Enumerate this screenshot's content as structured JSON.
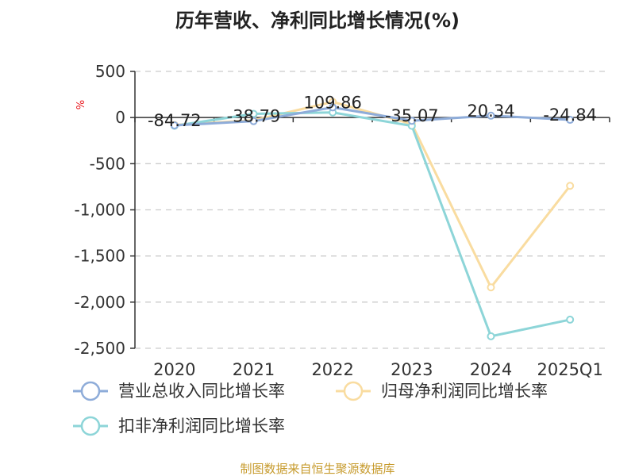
{
  "chart_data": {
    "type": "line",
    "title": "历年营收、净利同比增长情况(%)",
    "ylabel": "%",
    "categories": [
      "2020",
      "2021",
      "2022",
      "2023",
      "2024",
      "2025Q1"
    ],
    "ylim": [
      -2500,
      500
    ],
    "y_ticks": [
      500,
      0,
      -500,
      -1000,
      -1500,
      -2000,
      -2500
    ],
    "y_tick_labels": [
      "500",
      "0",
      "-500",
      "-1,000",
      "-1,500",
      "-2,000",
      "-2,500"
    ],
    "grid": true,
    "legend_position": "bottom",
    "series": [
      {
        "name": "营业总收入同比增长率",
        "color": "#8eacd9",
        "values": [
          -84.72,
          -38.79,
          109.86,
          -35.07,
          20.34,
          -24.84
        ],
        "data_labels": [
          "-84.72",
          "-38.79",
          "109.86",
          "-35.07",
          "20.34",
          "-24.84"
        ]
      },
      {
        "name": "归母净利润同比增长率",
        "color": "#f9dca0",
        "values": [
          -80,
          -30,
          170,
          -70,
          -1840,
          -740
        ]
      },
      {
        "name": "扣非净利润同比增长率",
        "color": "#8dd5d8",
        "values": [
          -90,
          40,
          55,
          -90,
          -2370,
          -2190
        ]
      }
    ]
  },
  "colors": {
    "unit_label": "#e8141a",
    "source": "#c79b2d",
    "axis": "#333333",
    "grid": "#cccccc"
  },
  "source_text": "制图数据来自恒生聚源数据库"
}
